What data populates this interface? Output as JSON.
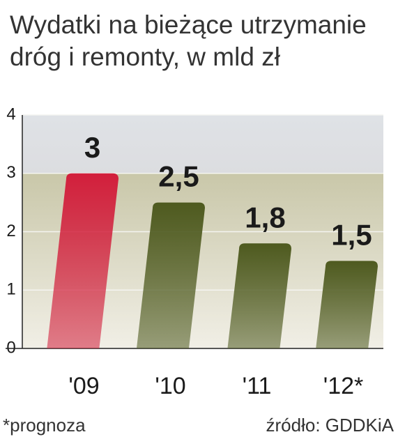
{
  "chart_data": {
    "type": "bar",
    "title": [
      "Wydatki na bieżące utrzymanie",
      "dróg i remonty, w mld zł"
    ],
    "categories": [
      "'09",
      "'10",
      "'11",
      "'12*"
    ],
    "values": [
      3,
      2.5,
      1.8,
      1.5
    ],
    "value_labels": [
      "3",
      "2,5",
      "1,8",
      "1,5"
    ],
    "colors": [
      "#d21f3c",
      "#4e5a1f",
      "#4e5a1f",
      "#4e5a1f"
    ],
    "ylim": [
      0,
      4
    ],
    "yticks": [
      0,
      1,
      2,
      3,
      4
    ],
    "grid": true,
    "note": "*prognoza",
    "source": "źródło: GDDKiA"
  }
}
